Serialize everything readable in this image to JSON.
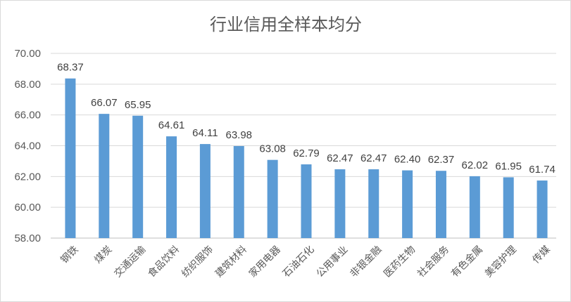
{
  "chart_data": {
    "type": "bar",
    "title": "行业信用全样本均分",
    "categories": [
      "钢铁",
      "煤炭",
      "交通运输",
      "食品饮料",
      "纺织服饰",
      "建筑材料",
      "家用电器",
      "石油石化",
      "公用事业",
      "非银金融",
      "医药生物",
      "社会服务",
      "有色金属",
      "美容护理",
      "传媒"
    ],
    "values": [
      68.37,
      66.07,
      65.95,
      64.61,
      64.11,
      63.98,
      63.08,
      62.79,
      62.47,
      62.47,
      62.4,
      62.37,
      62.02,
      61.95,
      61.74
    ],
    "data_labels": [
      "68.37",
      "66.07",
      "65.95",
      "64.61",
      "64.11",
      "63.98",
      "63.08",
      "62.79",
      "62.47",
      "62.47",
      "62.40",
      "62.37",
      "62.02",
      "61.95",
      "61.74"
    ],
    "ylim": [
      58,
      70
    ],
    "yticks": [
      58,
      60,
      62,
      64,
      66,
      68,
      70
    ],
    "ytick_labels": [
      "58.00",
      "60.00",
      "62.00",
      "64.00",
      "66.00",
      "68.00",
      "70.00"
    ],
    "grid": true,
    "legend": "none",
    "bar_color": "#5b9bd5"
  }
}
